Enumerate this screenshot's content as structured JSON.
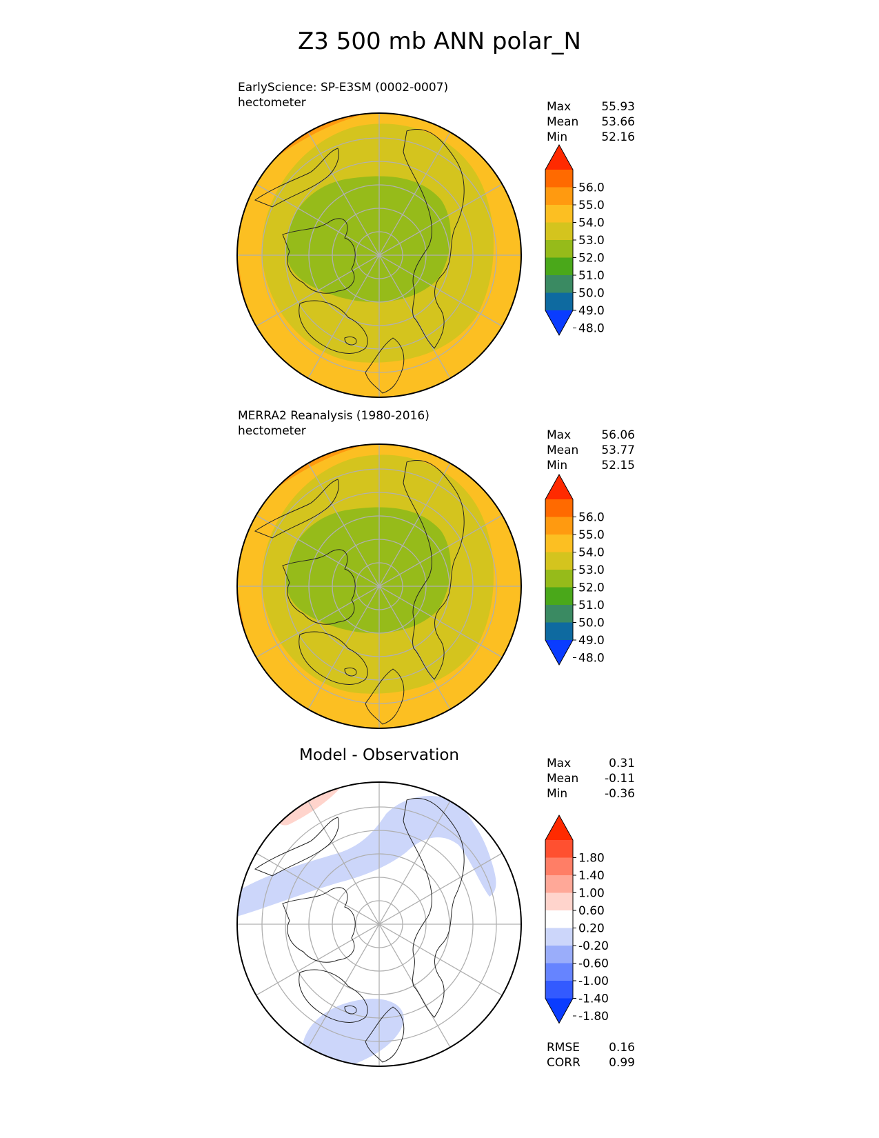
{
  "suptitle": "Z3 500 mb ANN polar_N",
  "panels": [
    {
      "id": "test",
      "label_line1": "EarlyScience: SP-E3SM (0002-0007)",
      "label_line2": "hectometer",
      "stats": [
        {
          "label": "Max",
          "value": "55.93"
        },
        {
          "label": "Mean",
          "value": "53.66"
        },
        {
          "label": "Min",
          "value": "52.16"
        }
      ]
    },
    {
      "id": "reference",
      "label_line1": "MERRA2 Reanalysis (1980-2016)",
      "label_line2": "hectometer",
      "stats": [
        {
          "label": "Max",
          "value": "56.06"
        },
        {
          "label": "Mean",
          "value": "53.77"
        },
        {
          "label": "Min",
          "value": "52.15"
        }
      ]
    },
    {
      "id": "diff",
      "title": "Model - Observation",
      "stats": [
        {
          "label": "Max",
          "value": "0.31"
        },
        {
          "label": "Mean",
          "value": "-0.11"
        },
        {
          "label": "Min",
          "value": "-0.36"
        }
      ],
      "metrics": [
        {
          "label": "RMSE",
          "value": "0.16"
        },
        {
          "label": "CORR",
          "value": "0.99"
        }
      ]
    }
  ],
  "chart_data": [
    {
      "type": "heatmap",
      "projection": "north polar stereographic",
      "colorbar": {
        "ticks": [
          "56.0",
          "55.0",
          "54.0",
          "53.0",
          "52.0",
          "51.0",
          "50.0",
          "49.0",
          "48.0"
        ],
        "colors": [
          "#ff2a00",
          "#ff6a00",
          "#ff9a10",
          "#fcbf22",
          "#d4c41e",
          "#96bb1a",
          "#4aa81a",
          "#3a8a62",
          "#0e6aa0",
          "#0a3cff"
        ],
        "extend": "both"
      }
    },
    {
      "type": "heatmap",
      "projection": "north polar stereographic",
      "colorbar": {
        "ticks": [
          "56.0",
          "55.0",
          "54.0",
          "53.0",
          "52.0",
          "51.0",
          "50.0",
          "49.0",
          "48.0"
        ],
        "colors": [
          "#ff2a00",
          "#ff6a00",
          "#ff9a10",
          "#fcbf22",
          "#d4c41e",
          "#96bb1a",
          "#4aa81a",
          "#3a8a62",
          "#0e6aa0",
          "#0a3cff"
        ],
        "extend": "both"
      }
    },
    {
      "type": "heatmap",
      "projection": "north polar stereographic",
      "colorbar": {
        "ticks": [
          "1.80",
          "1.40",
          "1.00",
          "0.60",
          "0.20",
          "-0.20",
          "-0.60",
          "-1.00",
          "-1.40",
          "-1.80"
        ],
        "colors": [
          "#ff2a00",
          "#ff5030",
          "#ff7e66",
          "#ffa898",
          "#ffd4cc",
          "#ffffff",
          "#ccd6fa",
          "#9aadfa",
          "#6684ff",
          "#335aff",
          "#0a3cff"
        ],
        "extend": "both"
      }
    }
  ]
}
